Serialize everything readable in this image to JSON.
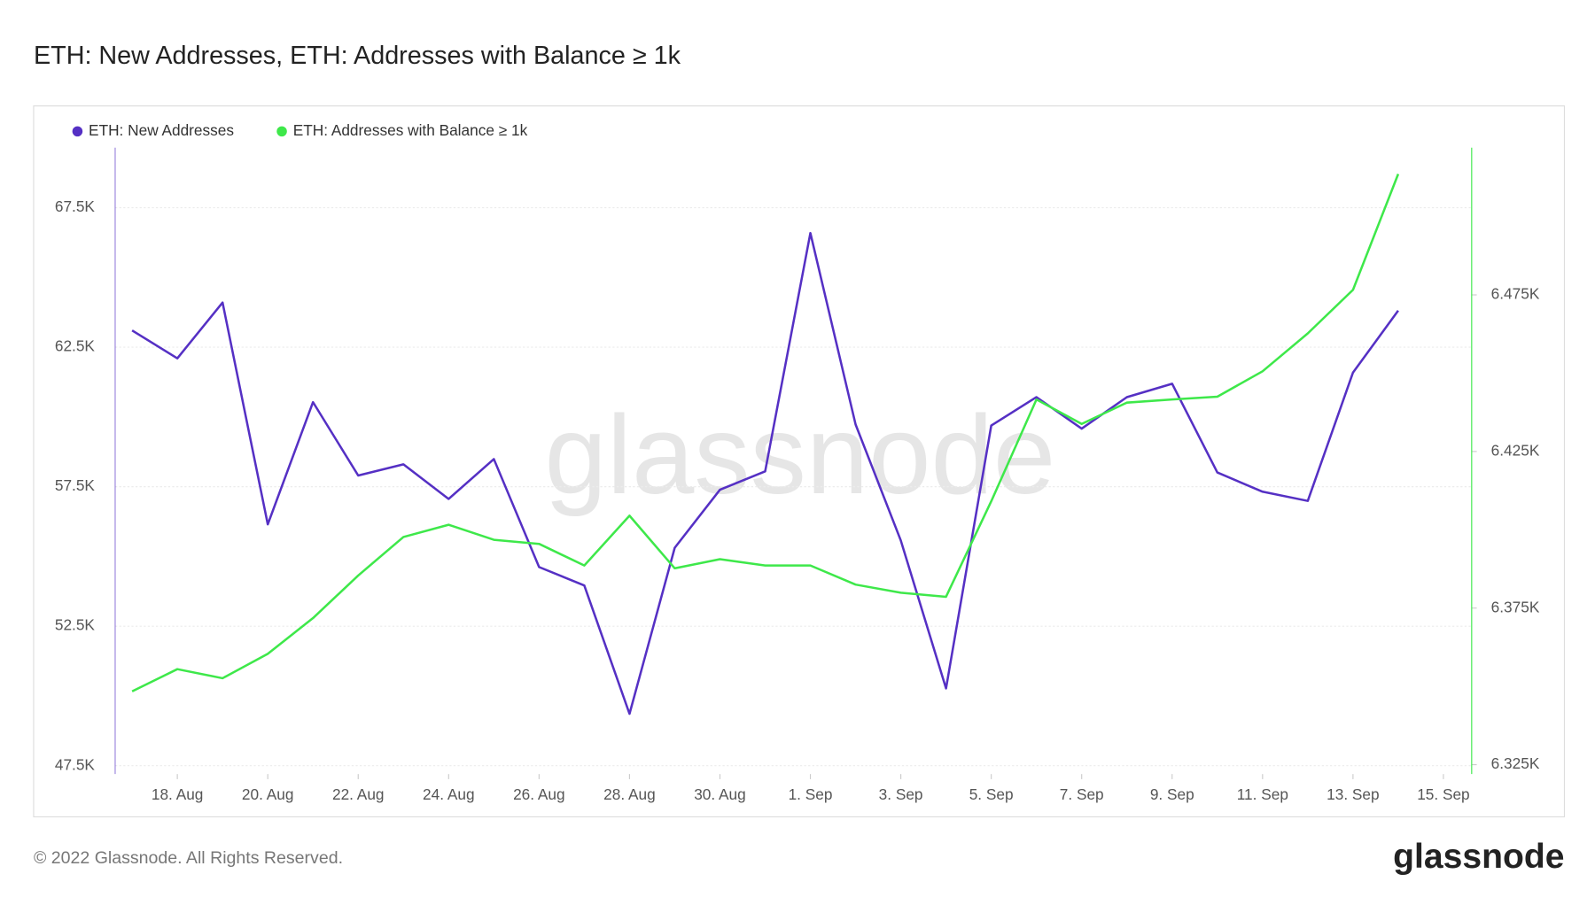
{
  "chart_data": {
    "type": "line",
    "title": "ETH: New Addresses, ETH: Addresses with Balance ≥ 1k",
    "x": [
      "08-17",
      "08-18",
      "08-19",
      "08-20",
      "08-21",
      "08-22",
      "08-23",
      "08-24",
      "08-25",
      "08-26",
      "08-27",
      "08-28",
      "08-29",
      "08-30",
      "08-31",
      "09-01",
      "09-02",
      "09-03",
      "09-04",
      "09-05",
      "09-06",
      "09-07",
      "09-08",
      "09-09",
      "09-10",
      "09-11",
      "09-12",
      "09-13",
      "09-14"
    ],
    "xlim": [
      "08-16T15",
      "09-15T15"
    ],
    "xticks": [
      {
        "value": "08-18",
        "label": "18. Aug"
      },
      {
        "value": "08-20",
        "label": "20. Aug"
      },
      {
        "value": "08-22",
        "label": "22. Aug"
      },
      {
        "value": "08-24",
        "label": "24. Aug"
      },
      {
        "value": "08-26",
        "label": "26. Aug"
      },
      {
        "value": "08-28",
        "label": "28. Aug"
      },
      {
        "value": "08-30",
        "label": "30. Aug"
      },
      {
        "value": "09-01",
        "label": "1. Sep"
      },
      {
        "value": "09-03",
        "label": "3. Sep"
      },
      {
        "value": "09-05",
        "label": "5. Sep"
      },
      {
        "value": "09-07",
        "label": "7. Sep"
      },
      {
        "value": "09-09",
        "label": "9. Sep"
      },
      {
        "value": "09-11",
        "label": "11. Sep"
      },
      {
        "value": "09-13",
        "label": "13. Sep"
      },
      {
        "value": "09-15",
        "label": "15. Sep"
      }
    ],
    "ylim": [
      47200,
      69650
    ],
    "yticks": [
      {
        "value": 47500,
        "label": "47.5K"
      },
      {
        "value": 52500,
        "label": "52.5K"
      },
      {
        "value": 57500,
        "label": "57.5K"
      },
      {
        "value": 62500,
        "label": "62.5K"
      },
      {
        "value": 67500,
        "label": "67.5K"
      }
    ],
    "y2lim": [
      6322,
      6522
    ],
    "y2ticks": [
      {
        "value": 6325,
        "label": "6.325K"
      },
      {
        "value": 6375,
        "label": "6.375K"
      },
      {
        "value": 6425,
        "label": "6.425K"
      },
      {
        "value": 6475,
        "label": "6.475K"
      }
    ],
    "grid": true,
    "legend": "top-left",
    "series": [
      {
        "name": "ETH: New Addresses",
        "color": "#5530c4",
        "axis": "y",
        "values": [
          63100,
          62100,
          64100,
          56150,
          60530,
          57900,
          58300,
          57060,
          58490,
          54620,
          53960,
          49360,
          55310,
          57390,
          58050,
          66590,
          59730,
          55570,
          50270,
          59690,
          60710,
          59580,
          60710,
          61190,
          58010,
          57320,
          56990,
          61590,
          63810
        ]
      },
      {
        "name": "ETH: Addresses with Balance ≥ 1k",
        "color": "#3ee84a",
        "axis": "y2",
        "values": [
          6348.4,
          6355.5,
          6352.6,
          6360.4,
          6371.8,
          6385.4,
          6397.7,
          6401.6,
          6396.8,
          6395.5,
          6388.6,
          6404.5,
          6387.7,
          6390.6,
          6388.6,
          6388.6,
          6382.5,
          6379.9,
          6378.6,
          6409.1,
          6441.6,
          6433.8,
          6440.6,
          6441.6,
          6442.5,
          6450.6,
          6462.7,
          6476.6,
          6513.6
        ]
      }
    ],
    "watermark": "glassnode",
    "footer": "© 2022 Glassnode. All Rights Reserved.",
    "logo": "glassnode"
  }
}
